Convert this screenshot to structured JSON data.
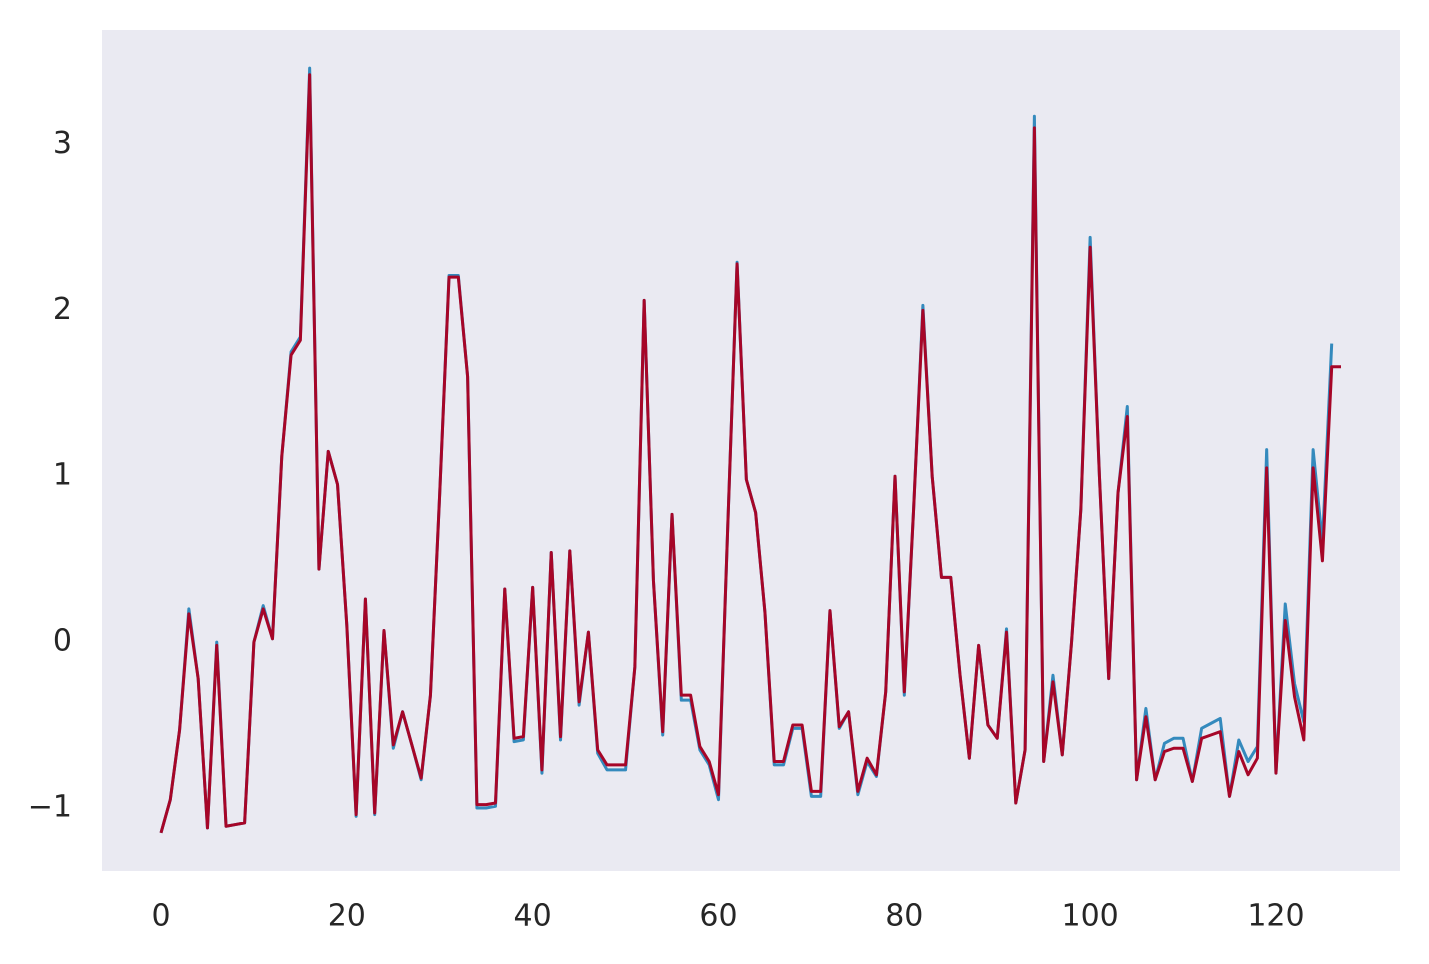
{
  "chart_data": {
    "type": "line",
    "x": [
      0,
      1,
      2,
      3,
      4,
      5,
      6,
      7,
      8,
      9,
      10,
      11,
      12,
      13,
      14,
      15,
      16,
      17,
      18,
      19,
      20,
      21,
      22,
      23,
      24,
      25,
      26,
      27,
      28,
      29,
      30,
      31,
      32,
      33,
      34,
      35,
      36,
      37,
      38,
      39,
      40,
      41,
      42,
      43,
      44,
      45,
      46,
      47,
      48,
      49,
      50,
      51,
      52,
      53,
      54,
      55,
      56,
      57,
      58,
      59,
      60,
      61,
      62,
      63,
      64,
      65,
      66,
      67,
      68,
      69,
      70,
      71,
      72,
      73,
      74,
      75,
      76,
      77,
      78,
      79,
      80,
      81,
      82,
      83,
      84,
      85,
      86,
      87,
      88,
      89,
      90,
      91,
      92,
      93,
      94,
      95,
      96,
      97,
      98,
      99,
      100,
      101,
      102,
      103,
      104,
      105,
      106,
      107,
      108,
      109,
      110,
      111,
      112,
      113,
      114,
      115,
      116,
      117,
      118,
      119,
      120,
      121,
      122,
      123,
      124,
      125,
      126,
      127
    ],
    "series": [
      {
        "color": "#348ABD",
        "values": [
          -1.15,
          -0.95,
          -0.53,
          0.2,
          -0.22,
          -1.12,
          0.0,
          -1.11,
          -1.1,
          -1.09,
          0.0,
          0.22,
          0.02,
          1.12,
          1.75,
          1.84,
          3.46,
          0.44,
          1.15,
          0.95,
          0.1,
          -1.05,
          0.26,
          -1.04,
          0.07,
          -0.64,
          -0.42,
          -0.62,
          -0.83,
          -0.32,
          0.9,
          2.21,
          2.21,
          1.6,
          -1.0,
          -1.0,
          -0.99,
          0.32,
          -0.6,
          -0.59,
          0.33,
          -0.79,
          0.54,
          -0.59,
          0.55,
          -0.38,
          0.06,
          -0.67,
          -0.77,
          -0.77,
          -0.77,
          -0.15,
          2.06,
          0.37,
          -0.56,
          0.77,
          -0.35,
          -0.35,
          -0.65,
          -0.74,
          -0.95,
          0.7,
          2.29,
          0.98,
          0.78,
          0.18,
          -0.74,
          -0.74,
          -0.52,
          -0.52,
          -0.93,
          -0.93,
          0.19,
          -0.52,
          -0.42,
          -0.92,
          -0.72,
          -0.81,
          -0.3,
          1.0,
          -0.32,
          0.8,
          2.03,
          1.0,
          0.39,
          0.39,
          -0.2,
          -0.7,
          -0.02,
          -0.5,
          -0.58,
          0.08,
          -0.97,
          -0.65,
          3.17,
          -0.72,
          -0.2,
          -0.68,
          0.0,
          0.8,
          2.44,
          1.0,
          -0.22,
          0.9,
          1.42,
          -0.83,
          -0.4,
          -0.83,
          -0.61,
          -0.58,
          -0.58,
          -0.84,
          -0.52,
          -0.49,
          -0.46,
          -0.93,
          -0.59,
          -0.72,
          -0.63,
          1.16,
          -0.79,
          0.23,
          -0.25,
          -0.48,
          1.16,
          0.6,
          1.8,
          null
        ]
      },
      {
        "color": "#A60628",
        "values": [
          -1.15,
          -0.95,
          -0.53,
          0.17,
          -0.22,
          -1.12,
          -0.02,
          -1.11,
          -1.1,
          -1.09,
          0.0,
          0.2,
          0.02,
          1.12,
          1.73,
          1.82,
          3.42,
          0.44,
          1.15,
          0.95,
          0.1,
          -1.04,
          0.26,
          -1.03,
          0.07,
          -0.62,
          -0.42,
          -0.62,
          -0.82,
          -0.32,
          0.9,
          2.2,
          2.2,
          1.6,
          -0.98,
          -0.98,
          -0.97,
          0.32,
          -0.58,
          -0.57,
          0.33,
          -0.77,
          0.54,
          -0.57,
          0.55,
          -0.36,
          0.06,
          -0.65,
          -0.74,
          -0.74,
          -0.74,
          -0.15,
          2.06,
          0.37,
          -0.54,
          0.77,
          -0.32,
          -0.32,
          -0.63,
          -0.72,
          -0.92,
          0.7,
          2.28,
          0.98,
          0.78,
          0.18,
          -0.72,
          -0.72,
          -0.5,
          -0.5,
          -0.9,
          -0.9,
          0.19,
          -0.51,
          -0.42,
          -0.9,
          -0.7,
          -0.8,
          -0.3,
          1.0,
          -0.3,
          0.8,
          2.0,
          1.0,
          0.39,
          0.39,
          -0.2,
          -0.7,
          -0.02,
          -0.5,
          -0.58,
          0.06,
          -0.97,
          -0.65,
          3.1,
          -0.72,
          -0.24,
          -0.68,
          0.0,
          0.8,
          2.38,
          1.0,
          -0.22,
          0.9,
          1.36,
          -0.83,
          -0.45,
          -0.83,
          -0.66,
          -0.64,
          -0.64,
          -0.84,
          -0.58,
          -0.56,
          -0.54,
          -0.93,
          -0.66,
          -0.8,
          -0.7,
          1.05,
          -0.79,
          0.13,
          -0.33,
          -0.59,
          1.05,
          0.49,
          1.66,
          1.66
        ]
      }
    ],
    "xlim": [
      -6.35,
      133.35
    ],
    "ylim": [
      -1.38,
      3.69
    ],
    "xticks": [
      0,
      20,
      40,
      60,
      80,
      100,
      120
    ],
    "yticks": [
      {
        "value": -1,
        "label": "−1"
      },
      0,
      1,
      2,
      3
    ],
    "background": "#EAEAF2",
    "grid": false
  }
}
